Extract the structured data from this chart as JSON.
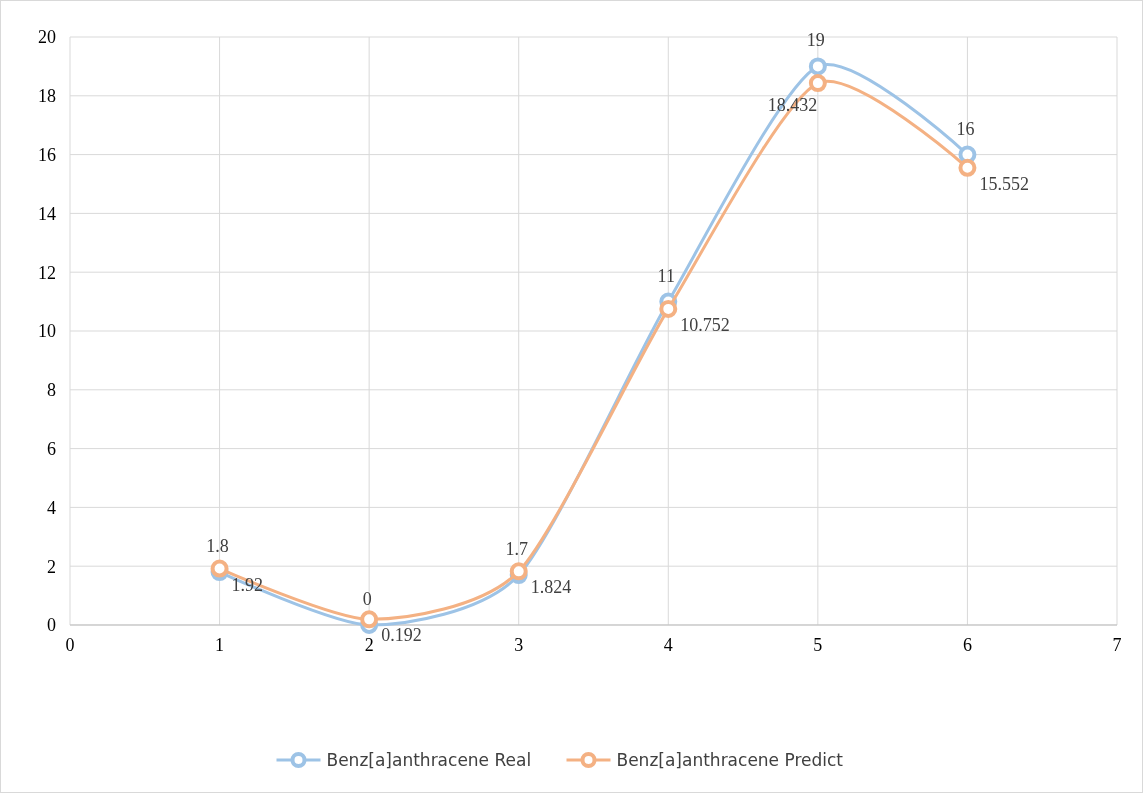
{
  "chart_data": {
    "type": "line",
    "x": [
      1,
      2,
      3,
      4,
      5,
      6
    ],
    "series": [
      {
        "name": "Benz[a]anthracene Real",
        "color": "#9dc3e6",
        "values": [
          1.8,
          0,
          1.7,
          11,
          19,
          16
        ]
      },
      {
        "name": "Benz[a]anthracene Predict",
        "color": "#f4b183",
        "values": [
          1.92,
          0.192,
          1.824,
          10.752,
          18.432,
          15.552
        ]
      }
    ],
    "xlim": [
      0,
      7
    ],
    "xticks": [
      0,
      1,
      2,
      3,
      4,
      5,
      6,
      7
    ],
    "ylim": [
      0,
      20
    ],
    "yticks": [
      0,
      2,
      4,
      6,
      8,
      10,
      12,
      14,
      16,
      18,
      20
    ],
    "grid": true,
    "legend": "bottom",
    "marker": "circle",
    "line_style": "solid",
    "data_labels": true
  }
}
